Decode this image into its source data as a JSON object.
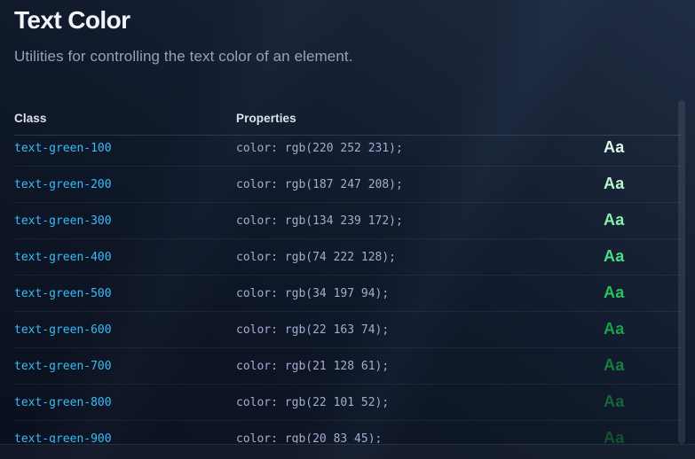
{
  "page": {
    "title": "Text Color",
    "subtitle": "Utilities for controlling the text color of an element."
  },
  "table": {
    "headers": {
      "class": "Class",
      "properties": "Properties"
    },
    "sample_label": "Aa",
    "rows": [
      {
        "class": "text-green-100",
        "properties": "color: rgb(220 252 231);",
        "color": "#dcfce7"
      },
      {
        "class": "text-green-200",
        "properties": "color: rgb(187 247 208);",
        "color": "#bbf7d0"
      },
      {
        "class": "text-green-300",
        "properties": "color: rgb(134 239 172);",
        "color": "#86efac"
      },
      {
        "class": "text-green-400",
        "properties": "color: rgb(74 222 128);",
        "color": "#4ade80"
      },
      {
        "class": "text-green-500",
        "properties": "color: rgb(34 197 94);",
        "color": "#22c55e"
      },
      {
        "class": "text-green-600",
        "properties": "color: rgb(22 163 74);",
        "color": "#16a34a"
      },
      {
        "class": "text-green-700",
        "properties": "color: rgb(21 128 61);",
        "color": "#15803d"
      },
      {
        "class": "text-green-800",
        "properties": "color: rgb(22 101 52);",
        "color": "#166534"
      },
      {
        "class": "text-green-900",
        "properties": "color: rgb(20 83 45);",
        "color": "#14532d"
      }
    ]
  },
  "colors": {
    "accent_class_text": "#38bdf8",
    "properties_text": "#a2aed0",
    "background_dark": "#0b1120",
    "heading_text": "#f1f5f9",
    "subtitle_text": "#94a3b8"
  }
}
